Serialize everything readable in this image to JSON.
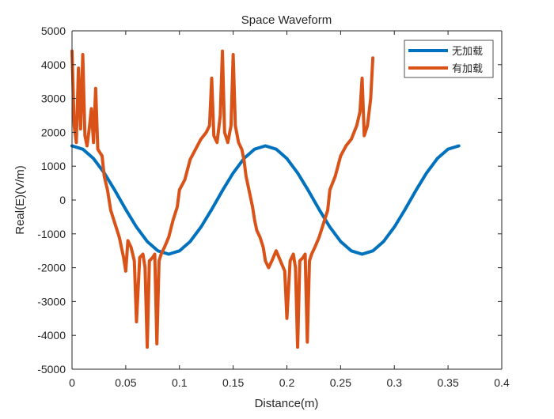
{
  "chart_data": {
    "type": "line",
    "title": "Space Waveform",
    "xlabel": "Distance(m)",
    "ylabel": "Real(E)(V/m)",
    "xlim": [
      0,
      0.4
    ],
    "ylim": [
      -5000,
      5000
    ],
    "xticks": [
      "0",
      "0.05",
      "0.1",
      "0.15",
      "0.2",
      "0.25",
      "0.3",
      "0.35",
      "0.4"
    ],
    "yticks": [
      "-5000",
      "-4000",
      "-3000",
      "-2000",
      "-1000",
      "0",
      "1000",
      "2000",
      "3000",
      "4000",
      "5000"
    ],
    "grid": false,
    "legend_position": "top-right",
    "series": [
      {
        "name": "无加载",
        "color": "#0072BD",
        "x": [
          0,
          0.01,
          0.02,
          0.03,
          0.04,
          0.05,
          0.06,
          0.07,
          0.08,
          0.09,
          0.1,
          0.11,
          0.12,
          0.13,
          0.14,
          0.15,
          0.16,
          0.17,
          0.18,
          0.19,
          0.2,
          0.21,
          0.22,
          0.23,
          0.24,
          0.25,
          0.26,
          0.27,
          0.28,
          0.29,
          0.3,
          0.31,
          0.32,
          0.33,
          0.34,
          0.35,
          0.36
        ],
        "y": [
          1600,
          1503,
          1226,
          800,
          278,
          -278,
          -800,
          -1226,
          -1503,
          -1600,
          -1503,
          -1226,
          -800,
          -278,
          278,
          800,
          1226,
          1503,
          1600,
          1503,
          1226,
          800,
          278,
          -278,
          -800,
          -1226,
          -1503,
          -1600,
          -1503,
          -1226,
          -800,
          -278,
          278,
          800,
          1226,
          1503,
          1600
        ]
      },
      {
        "name": "有加载",
        "color": "#D95319",
        "x": [
          0,
          0.002,
          0.004,
          0.006,
          0.008,
          0.01,
          0.012,
          0.014,
          0.016,
          0.018,
          0.02,
          0.022,
          0.024,
          0.026,
          0.028,
          0.03,
          0.033,
          0.036,
          0.04,
          0.044,
          0.048,
          0.05,
          0.052,
          0.055,
          0.058,
          0.06,
          0.063,
          0.066,
          0.068,
          0.07,
          0.072,
          0.075,
          0.077,
          0.079,
          0.081,
          0.083,
          0.086,
          0.09,
          0.094,
          0.098,
          0.1,
          0.105,
          0.11,
          0.115,
          0.12,
          0.125,
          0.128,
          0.13,
          0.132,
          0.135,
          0.138,
          0.14,
          0.142,
          0.145,
          0.148,
          0.15,
          0.152,
          0.155,
          0.158,
          0.16,
          0.162,
          0.164,
          0.166,
          0.168,
          0.17,
          0.172,
          0.175,
          0.178,
          0.18,
          0.183,
          0.186,
          0.19,
          0.194,
          0.198,
          0.2,
          0.203,
          0.206,
          0.208,
          0.21,
          0.212,
          0.215,
          0.217,
          0.219,
          0.221,
          0.223,
          0.226,
          0.23,
          0.234,
          0.238,
          0.24,
          0.245,
          0.25,
          0.255,
          0.26,
          0.265,
          0.268,
          0.27,
          0.272,
          0.275,
          0.278,
          0.28
        ],
        "y": [
          4400,
          2200,
          1700,
          3900,
          2100,
          4300,
          1900,
          1600,
          2100,
          2700,
          1700,
          3300,
          1500,
          1400,
          1300,
          700,
          300,
          -300,
          -700,
          -1100,
          -1700,
          -2100,
          -1200,
          -1400,
          -1800,
          -3600,
          -1700,
          -1600,
          -2000,
          -4350,
          -1800,
          -1700,
          -1600,
          -4250,
          -1800,
          -1600,
          -1400,
          -1100,
          -600,
          -200,
          300,
          600,
          1200,
          1500,
          1800,
          2000,
          2200,
          3600,
          1900,
          1700,
          2500,
          4400,
          2000,
          1700,
          2200,
          4300,
          2200,
          1700,
          1500,
          1200,
          700,
          400,
          100,
          -200,
          -600,
          -900,
          -1100,
          -1400,
          -1800,
          -2000,
          -1800,
          -1500,
          -1800,
          -2100,
          -3500,
          -1800,
          -1600,
          -2000,
          -4350,
          -1800,
          -1700,
          -1600,
          -4200,
          -1800,
          -1600,
          -1400,
          -1100,
          -700,
          -300,
          300,
          700,
          1300,
          1600,
          1800,
          2200,
          2600,
          3600,
          1900,
          2200,
          3000,
          4200
        ]
      }
    ]
  }
}
